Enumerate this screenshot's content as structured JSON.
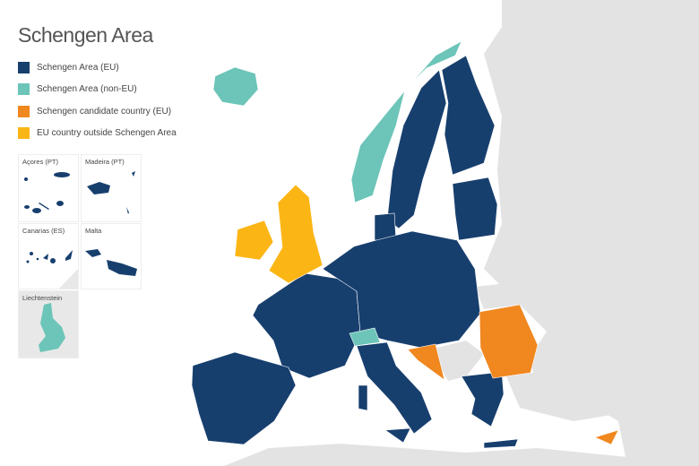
{
  "title": "Schengen Area",
  "legend": [
    {
      "label": "Schengen Area (EU)",
      "color": "#173f6e"
    },
    {
      "label": "Schengen Area (non-EU)",
      "color": "#6cc5b8"
    },
    {
      "label": "Schengen candidate country (EU)",
      "color": "#f0871f"
    },
    {
      "label": "EU country outside Schengen Area",
      "color": "#fbb616"
    }
  ],
  "insets": [
    {
      "label": "Açores (PT)"
    },
    {
      "label": "Madeira (PT)"
    },
    {
      "label": "Canarias (ES)"
    },
    {
      "label": "Malta"
    },
    {
      "label": "Liechtenstein"
    }
  ],
  "colors": {
    "land": "#e3e3e3",
    "sea": "#ffffff",
    "border": "#ffffff"
  }
}
